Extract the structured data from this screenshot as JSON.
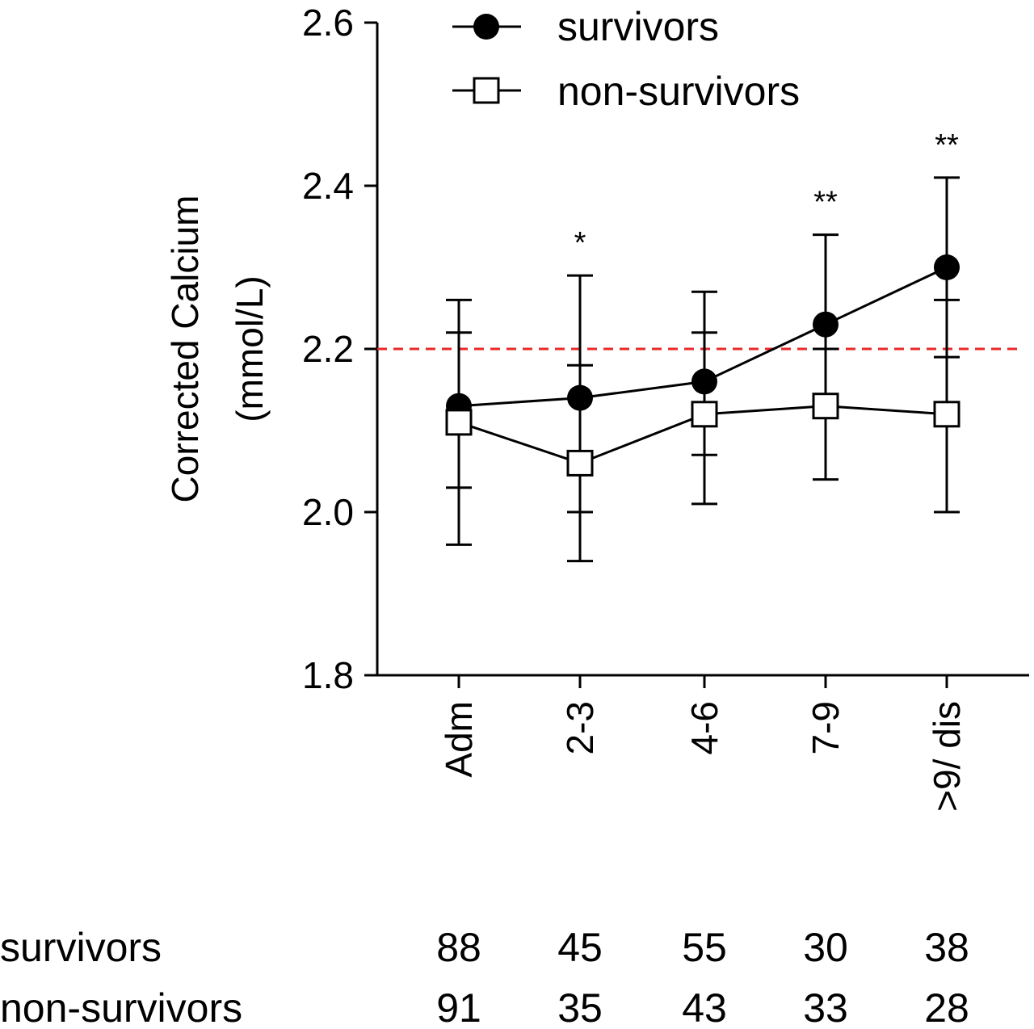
{
  "chart_data": {
    "type": "line",
    "ylabel_line1": "Corrected Calcium",
    "ylabel_line2": "(mmol/L)",
    "categories": [
      "Adm",
      "2-3",
      "4-6",
      "7-9",
      ">9/ dis"
    ],
    "ylim": [
      1.8,
      2.6
    ],
    "yticks": [
      "1.8",
      "2.0",
      "2.2",
      "2.4",
      "2.6"
    ],
    "grid": false,
    "legend_position": "top",
    "reference_line": {
      "value": 2.2,
      "color": "#e8282a",
      "style": "dashed"
    },
    "series": [
      {
        "name": "survivors",
        "marker": "filled-circle",
        "values": [
          2.13,
          2.14,
          2.16,
          2.23,
          2.3
        ],
        "err_low": [
          2.03,
          2.0,
          2.07,
          2.12,
          2.19
        ],
        "err_high": [
          2.22,
          2.18,
          2.22,
          2.34,
          2.41
        ]
      },
      {
        "name": "non-survivors",
        "marker": "open-square",
        "values": [
          2.11,
          2.06,
          2.12,
          2.13,
          2.12
        ],
        "err_low": [
          1.96,
          1.94,
          2.01,
          2.04,
          2.0
        ],
        "err_high": [
          2.26,
          2.29,
          2.27,
          2.2,
          2.26
        ]
      }
    ],
    "significance": [
      "",
      "*",
      "",
      "**",
      "**"
    ]
  },
  "counts_table": {
    "rows": [
      {
        "label": "survivors",
        "values": [
          "88",
          "45",
          "55",
          "30",
          "38"
        ]
      },
      {
        "label": "non-survivors",
        "values": [
          "91",
          "35",
          "43",
          "33",
          "28"
        ]
      }
    ]
  }
}
